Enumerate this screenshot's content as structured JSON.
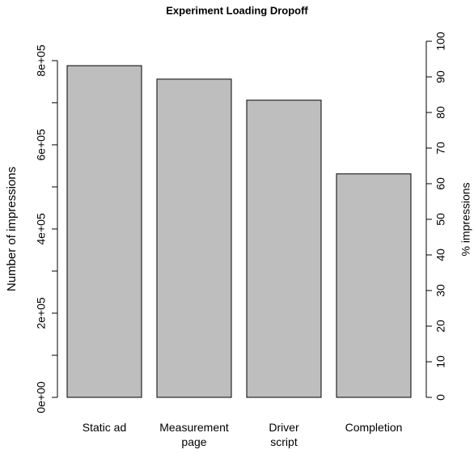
{
  "chart_data": {
    "type": "bar",
    "title": "Experiment Loading Dropoff",
    "categories": [
      "Static ad",
      "Measurement\npage",
      "Driver\nscript",
      "Completion"
    ],
    "values": [
      788000,
      756000,
      706000,
      531000
    ],
    "color": "#bebebe",
    "ylabel": "Number of impressions",
    "y2label": "% impressions",
    "ylim": [
      0,
      846000
    ],
    "yticks": [
      {
        "value": 0,
        "label": "0e+00"
      },
      {
        "value": 200000,
        "label": "2e+05"
      },
      {
        "value": 400000,
        "label": "4e+05"
      },
      {
        "value": 600000,
        "label": "6e+05"
      },
      {
        "value": 800000,
        "label": "8e+05"
      }
    ],
    "yminor_ticks": [
      100000,
      300000,
      500000,
      700000
    ],
    "y2lim": [
      0,
      100
    ],
    "y2ticks": [
      0,
      10,
      20,
      30,
      40,
      50,
      60,
      70,
      80,
      90,
      100
    ],
    "grid": false
  }
}
